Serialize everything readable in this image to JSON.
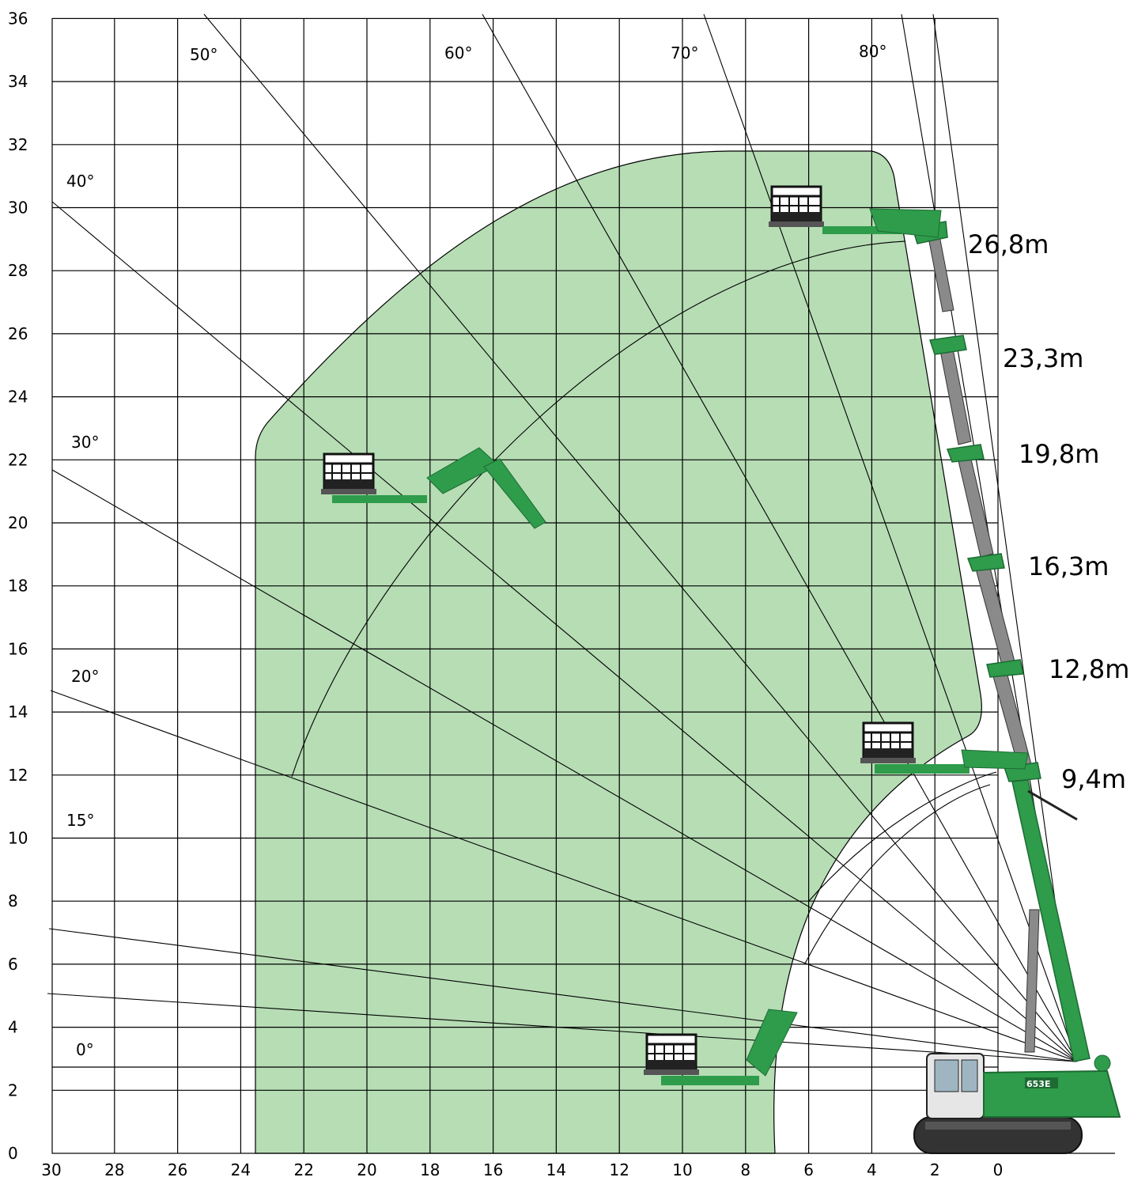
{
  "colors": {
    "envelope_fill": "#b6ddb4",
    "grid": "#000000",
    "machine_green": "#2e9c4b",
    "machine_dark": "#1d6b33",
    "boom_grey": "#8a8a8a",
    "cab": "#e6e6e6"
  },
  "y_ticks": [
    "36",
    "34",
    "32",
    "30",
    "28",
    "26",
    "24",
    "22",
    "20",
    "18",
    "16",
    "14",
    "12",
    "10",
    "8",
    "6",
    "4",
    "2",
    "0"
  ],
  "x_ticks": [
    "30",
    "28",
    "26",
    "24",
    "22",
    "20",
    "18",
    "16",
    "14",
    "12",
    "10",
    "8",
    "6",
    "4",
    "2",
    "0"
  ],
  "angle_labels": [
    {
      "text": "50°",
      "angle": 50
    },
    {
      "text": "60°",
      "angle": 60
    },
    {
      "text": "70°",
      "angle": 70
    },
    {
      "text": "80°",
      "angle": 80
    },
    {
      "text": "40°",
      "angle": 40
    },
    {
      "text": "30°",
      "angle": 30
    },
    {
      "text": "20°",
      "angle": 20
    },
    {
      "text": "15°",
      "angle": 15
    },
    {
      "text": "0°",
      "angle": 0
    }
  ],
  "boom_lengths": [
    {
      "text": "26,8m",
      "value": 26.8
    },
    {
      "text": "23,3m",
      "value": 23.3
    },
    {
      "text": "19,8m",
      "value": 19.8
    },
    {
      "text": "16,3m",
      "value": 16.3
    },
    {
      "text": "12,8m",
      "value": 12.8
    },
    {
      "text": "9,4m",
      "value": 9.4
    }
  ],
  "machine_badge": "653E"
}
